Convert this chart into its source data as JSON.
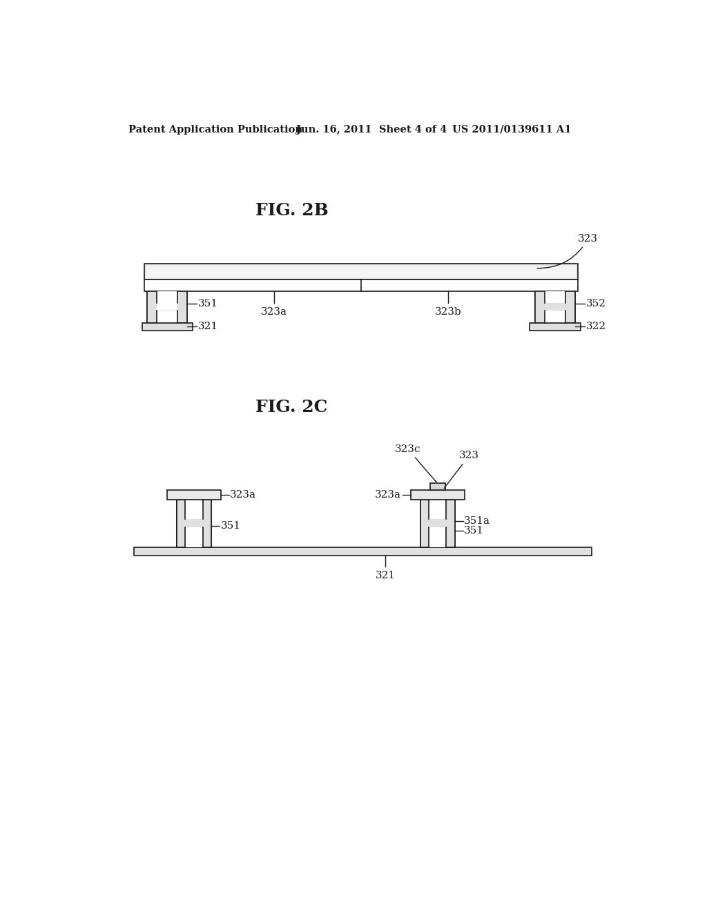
{
  "bg_color": "#ffffff",
  "line_color": "#1a1a1a",
  "header_left": "Patent Application Publication",
  "header_center": "Jun. 16, 2011  Sheet 4 of 4",
  "header_right": "US 2011/0139611 A1",
  "fig2b_title": "FIG. 2B",
  "fig2c_title": "FIG. 2C"
}
